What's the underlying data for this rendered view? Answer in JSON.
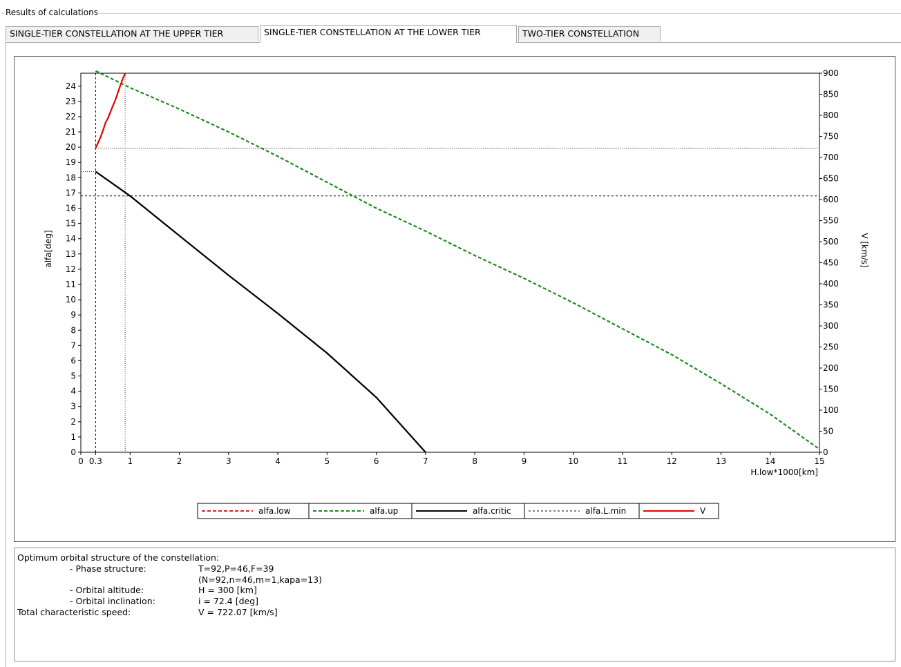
{
  "group_title": "Results of calculations",
  "tabs": [
    {
      "label": "SINGLE-TIER CONSTELLATION AT THE UPPER TIER",
      "active": false
    },
    {
      "label": "SINGLE-TIER CONSTELLATION AT THE LOWER TIER",
      "active": true
    },
    {
      "label": "TWO-TIER CONSTELLATION",
      "active": false
    }
  ],
  "chart_data": {
    "type": "line",
    "title": "",
    "xlabel": "H.low*1000[km]",
    "ylabel": "alfa[deg]",
    "y2label": "V [km/s]",
    "xlim": [
      0,
      15
    ],
    "ylim": [
      0,
      25
    ],
    "y2lim": [
      0,
      900
    ],
    "x_ticks": [
      0,
      0.3,
      1,
      2,
      3,
      4,
      5,
      6,
      7,
      8,
      9,
      10,
      11,
      12,
      13,
      14,
      15
    ],
    "x_tick_labels": [
      "0",
      "0.3",
      "1",
      "2",
      "3",
      "4",
      "5",
      "6",
      "7",
      "8",
      "9",
      "10",
      "11",
      "12",
      "13",
      "14",
      "15"
    ],
    "y_ticks": [
      0,
      1,
      2,
      3,
      4,
      5,
      6,
      7,
      8,
      9,
      10,
      11,
      12,
      13,
      14,
      15,
      16,
      17,
      18,
      19,
      20,
      21,
      22,
      23,
      24
    ],
    "y2_ticks": [
      0,
      50,
      100,
      150,
      200,
      250,
      300,
      350,
      400,
      450,
      500,
      550,
      600,
      650,
      700,
      750,
      800,
      850,
      900
    ],
    "grid": false,
    "legend_position": "bottom-center",
    "series": [
      {
        "name": "alfa.low",
        "axis": "left",
        "style": "dashed",
        "color": "#e02020",
        "x": [
          0.3,
          1,
          2,
          3,
          4,
          5,
          6,
          7
        ],
        "y": [
          18.4,
          16.8,
          14.2,
          11.6,
          9.1,
          6.5,
          3.6,
          0.0
        ]
      },
      {
        "name": "alfa.up",
        "axis": "left",
        "style": "dashed",
        "color": "#1a8a1a",
        "x": [
          0.3,
          1,
          2,
          3,
          4,
          5,
          6,
          7,
          8,
          9,
          10,
          11,
          12,
          13,
          14,
          15
        ],
        "y": [
          25.0,
          23.9,
          22.5,
          21.0,
          19.4,
          17.7,
          16.0,
          14.5,
          12.9,
          11.4,
          9.8,
          8.1,
          6.4,
          4.5,
          2.5,
          0.2
        ]
      },
      {
        "name": "alfa.critic",
        "axis": "left",
        "style": "solid",
        "color": "#000000",
        "x": [
          0.3,
          1,
          2,
          3,
          4,
          5,
          6,
          7
        ],
        "y": [
          18.4,
          16.8,
          14.2,
          11.6,
          9.1,
          6.5,
          3.6,
          0.0
        ]
      },
      {
        "name": "alfa.L.min",
        "axis": "left",
        "style": "dashed",
        "color": "#000000",
        "x": [
          0,
          15
        ],
        "y": [
          16.8,
          16.8
        ]
      },
      {
        "name": "V",
        "axis": "right",
        "style": "solid",
        "color": "#e00000",
        "x": [
          0.3,
          0.35,
          0.4,
          0.45,
          0.5,
          0.55,
          0.6,
          0.65,
          0.7,
          0.75,
          0.8,
          0.85,
          0.9
        ],
        "y": [
          722,
          735,
          748,
          764,
          782,
          793,
          808,
          822,
          836,
          853,
          870,
          886,
          900
        ]
      }
    ],
    "reference_levels": [
      {
        "axis": "right",
        "y": 722
      },
      {
        "axis": "left",
        "y": 18.4
      }
    ],
    "reference_x": [
      0.3,
      0.9
    ]
  },
  "info": {
    "heading": "Optimum orbital structure of the constellation:",
    "rows": [
      {
        "label": "- Phase structure:",
        "value": "T=92,P=46,F=39",
        "indent": true
      },
      {
        "label": "",
        "value": "(N=92,n=46,m=1,kapa=13)",
        "indent": true
      },
      {
        "label": "- Orbital altitude:",
        "value": "H = 300 [km]",
        "indent": true
      },
      {
        "label": "- Orbital inclination:",
        "value": "i = 72.4 [deg]",
        "indent": true
      },
      {
        "label": "Total characteristic speed:",
        "value": "V = 722.07 [km/s]",
        "indent": false
      }
    ]
  }
}
